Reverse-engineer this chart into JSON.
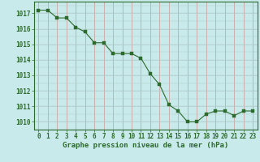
{
  "x": [
    0,
    1,
    2,
    3,
    4,
    5,
    6,
    7,
    8,
    9,
    10,
    11,
    12,
    13,
    14,
    15,
    16,
    17,
    18,
    19,
    20,
    21,
    22,
    23
  ],
  "y": [
    1017.2,
    1017.2,
    1016.7,
    1016.7,
    1016.1,
    1015.8,
    1015.1,
    1015.1,
    1014.4,
    1014.4,
    1014.4,
    1014.1,
    1013.1,
    1012.4,
    1011.1,
    1010.7,
    1010.0,
    1010.0,
    1010.5,
    1010.7,
    1010.7,
    1010.4,
    1010.7,
    1010.7
  ],
  "line_color": "#2d6a2d",
  "marker_color": "#2d6a2d",
  "bg_color": "#c8eaea",
  "grid_color_h": "#b0c8c8",
  "grid_color_v": "#d08080",
  "xlabel": "Graphe pression niveau de la mer (hPa)",
  "ylim": [
    1009.5,
    1017.75
  ],
  "xlim": [
    -0.5,
    23.5
  ],
  "yticks": [
    1010,
    1011,
    1012,
    1013,
    1014,
    1015,
    1016,
    1017
  ],
  "xticks": [
    0,
    1,
    2,
    3,
    4,
    5,
    6,
    7,
    8,
    9,
    10,
    11,
    12,
    13,
    14,
    15,
    16,
    17,
    18,
    19,
    20,
    21,
    22,
    23
  ],
  "xlabel_fontsize": 6.5,
  "tick_fontsize": 5.5,
  "line_width": 0.8,
  "marker_size": 2.5
}
